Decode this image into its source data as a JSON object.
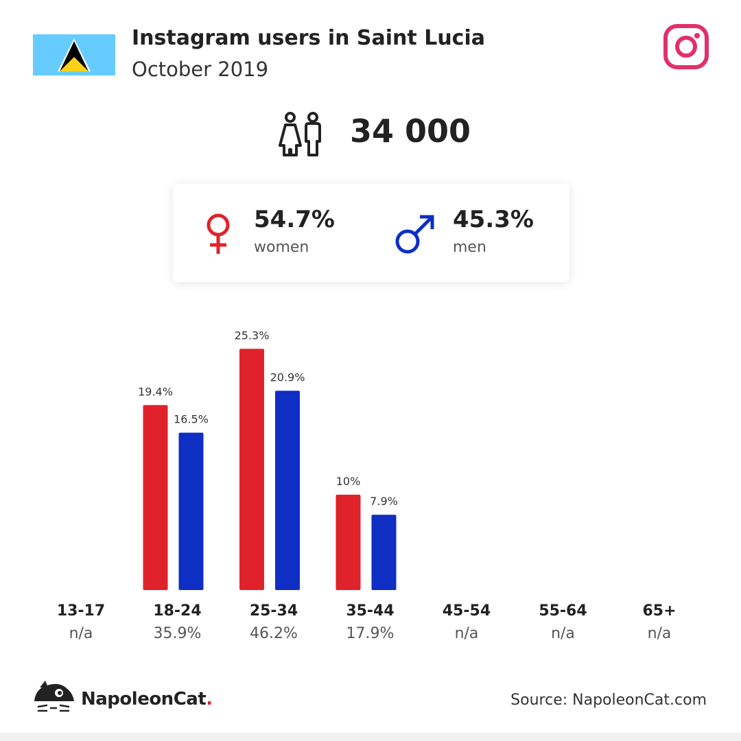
{
  "header": {
    "title": "Instagram users in Saint Lucia",
    "subtitle": "October 2019"
  },
  "total_users": "34 000",
  "gender": {
    "women": {
      "value": "54.7%",
      "label": "women"
    },
    "men": {
      "value": "45.3%",
      "label": "men"
    }
  },
  "colors": {
    "women": "#e0222a",
    "men": "#0e2ec4",
    "instagram": "#e1306c"
  },
  "icons": [
    "flag-saint-lucia-icon",
    "instagram-icon",
    "users-icon",
    "female-symbol-icon",
    "male-symbol-icon",
    "napoleoncat-logo-icon"
  ],
  "chart_data": {
    "type": "bar",
    "categories": [
      "13-17",
      "18-24",
      "25-34",
      "35-44",
      "45-54",
      "55-64",
      "65+"
    ],
    "category_totals": [
      "n/a",
      "35.9%",
      "46.2%",
      "17.9%",
      "n/a",
      "n/a",
      "n/a"
    ],
    "series": [
      {
        "name": "women",
        "values": [
          null,
          19.4,
          25.3,
          10,
          null,
          null,
          null
        ],
        "labels": [
          "",
          "19.4%",
          "25.3%",
          "10%",
          "",
          "",
          ""
        ]
      },
      {
        "name": "men",
        "values": [
          null,
          16.5,
          20.9,
          7.9,
          null,
          null,
          null
        ],
        "labels": [
          "",
          "16.5%",
          "20.9%",
          "7.9%",
          "",
          "",
          ""
        ]
      }
    ]
  },
  "footer": {
    "brand": "NapoleonCat",
    "brand_dot": ".",
    "source": "Source: NapoleonCat.com"
  }
}
